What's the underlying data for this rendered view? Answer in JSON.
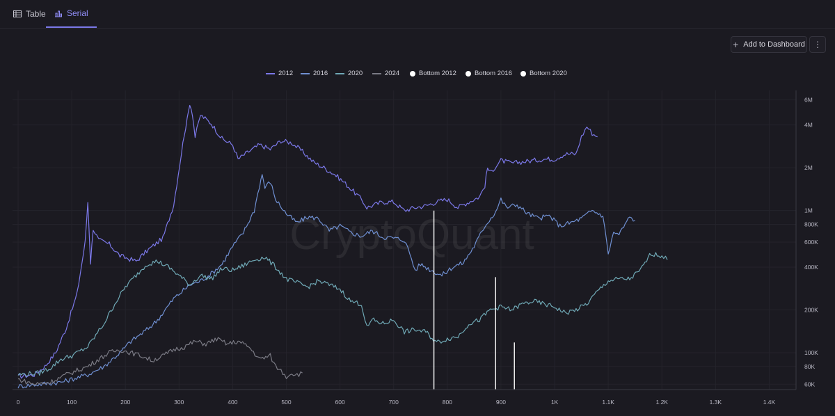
{
  "tabs": [
    {
      "label": "Table",
      "icon": "table-icon"
    },
    {
      "label": "Serial",
      "icon": "bar-chart-icon"
    }
  ],
  "toolbar": {
    "add_label": "Add to Dashboard"
  },
  "watermark": "CryptoQuant",
  "chart_data": {
    "type": "line",
    "title": "",
    "xlabel": "",
    "ylabel": "",
    "xlim": [
      0,
      1450
    ],
    "ylim": [
      55000,
      7000000
    ],
    "yscale": "log",
    "legend_position": "top-center",
    "x_ticks": [
      {
        "v": 0,
        "label": "0"
      },
      {
        "v": 100,
        "label": "100"
      },
      {
        "v": 200,
        "label": "200"
      },
      {
        "v": 300,
        "label": "300"
      },
      {
        "v": 400,
        "label": "400"
      },
      {
        "v": 500,
        "label": "500"
      },
      {
        "v": 600,
        "label": "600"
      },
      {
        "v": 700,
        "label": "700"
      },
      {
        "v": 800,
        "label": "800"
      },
      {
        "v": 900,
        "label": "900"
      },
      {
        "v": 1000,
        "label": "1K"
      },
      {
        "v": 1100,
        "label": "1.1K"
      },
      {
        "v": 1200,
        "label": "1.2K"
      },
      {
        "v": 1300,
        "label": "1.3K"
      },
      {
        "v": 1400,
        "label": "1.4K"
      }
    ],
    "y_ticks": [
      {
        "v": 60000,
        "label": "60K"
      },
      {
        "v": 80000,
        "label": "80K"
      },
      {
        "v": 100000,
        "label": "100K"
      },
      {
        "v": 200000,
        "label": "200K"
      },
      {
        "v": 400000,
        "label": "400K"
      },
      {
        "v": 600000,
        "label": "600K"
      },
      {
        "v": 800000,
        "label": "800K"
      },
      {
        "v": 1000000,
        "label": "1M"
      },
      {
        "v": 2000000,
        "label": "2M"
      },
      {
        "v": 4000000,
        "label": "4M"
      },
      {
        "v": 6000000,
        "label": "6M"
      }
    ],
    "series": [
      {
        "name": "2012",
        "color": "#7b78e8",
        "points": [
          [
            0,
            68000
          ],
          [
            30,
            70000
          ],
          [
            50,
            80000
          ],
          [
            70,
            100000
          ],
          [
            90,
            150000
          ],
          [
            110,
            260000
          ],
          [
            125,
            600000
          ],
          [
            130,
            1150000
          ],
          [
            135,
            430000
          ],
          [
            140,
            750000
          ],
          [
            150,
            620000
          ],
          [
            170,
            580000
          ],
          [
            190,
            480000
          ],
          [
            220,
            440000
          ],
          [
            240,
            520000
          ],
          [
            270,
            640000
          ],
          [
            290,
            1100000
          ],
          [
            310,
            3500000
          ],
          [
            315,
            4300000
          ],
          [
            320,
            5700000
          ],
          [
            325,
            4800000
          ],
          [
            330,
            3300000
          ],
          [
            340,
            4700000
          ],
          [
            360,
            4100000
          ],
          [
            380,
            3200000
          ],
          [
            400,
            2900000
          ],
          [
            410,
            2300000
          ],
          [
            430,
            2600000
          ],
          [
            450,
            2900000
          ],
          [
            470,
            2700000
          ],
          [
            490,
            3100000
          ],
          [
            510,
            3000000
          ],
          [
            530,
            2600000
          ],
          [
            550,
            2200000
          ],
          [
            570,
            2000000
          ],
          [
            590,
            1800000
          ],
          [
            610,
            1550000
          ],
          [
            640,
            1200000
          ],
          [
            650,
            1050000
          ],
          [
            680,
            1150000
          ],
          [
            700,
            1150000
          ],
          [
            720,
            1000000
          ],
          [
            740,
            1050000
          ],
          [
            760,
            1080000
          ],
          [
            780,
            1150000
          ],
          [
            800,
            1200000
          ],
          [
            820,
            1050000
          ],
          [
            840,
            1150000
          ],
          [
            860,
            1250000
          ],
          [
            870,
            1500000
          ],
          [
            875,
            2000000
          ],
          [
            880,
            1850000
          ],
          [
            900,
            2250000
          ],
          [
            920,
            2150000
          ],
          [
            940,
            2200000
          ],
          [
            960,
            2250000
          ],
          [
            980,
            2300000
          ],
          [
            1000,
            2300000
          ],
          [
            1020,
            2500000
          ],
          [
            1040,
            2500000
          ],
          [
            1050,
            3300000
          ],
          [
            1060,
            3900000
          ],
          [
            1070,
            3500000
          ],
          [
            1080,
            3300000
          ]
        ]
      },
      {
        "name": "2016",
        "color": "#6f8fd1",
        "points": [
          [
            0,
            58000
          ],
          [
            40,
            60000
          ],
          [
            80,
            62000
          ],
          [
            100,
            65000
          ],
          [
            130,
            70000
          ],
          [
            160,
            80000
          ],
          [
            190,
            100000
          ],
          [
            210,
            120000
          ],
          [
            240,
            145000
          ],
          [
            260,
            170000
          ],
          [
            290,
            240000
          ],
          [
            320,
            300000
          ],
          [
            340,
            320000
          ],
          [
            360,
            360000
          ],
          [
            380,
            420000
          ],
          [
            400,
            560000
          ],
          [
            420,
            700000
          ],
          [
            440,
            1000000
          ],
          [
            450,
            1500000
          ],
          [
            455,
            1800000
          ],
          [
            460,
            1450000
          ],
          [
            470,
            1600000
          ],
          [
            480,
            1200000
          ],
          [
            500,
            950000
          ],
          [
            520,
            820000
          ],
          [
            540,
            900000
          ],
          [
            560,
            880000
          ],
          [
            580,
            720000
          ],
          [
            600,
            780000
          ],
          [
            620,
            700000
          ],
          [
            640,
            660000
          ],
          [
            660,
            720000
          ],
          [
            680,
            650000
          ],
          [
            700,
            640000
          ],
          [
            720,
            620000
          ],
          [
            730,
            500000
          ],
          [
            740,
            380000
          ],
          [
            750,
            420000
          ],
          [
            770,
            380000
          ],
          [
            790,
            350000
          ],
          [
            810,
            400000
          ],
          [
            830,
            430000
          ],
          [
            850,
            560000
          ],
          [
            870,
            780000
          ],
          [
            890,
            980000
          ],
          [
            900,
            1200000
          ],
          [
            910,
            1050000
          ],
          [
            930,
            1100000
          ],
          [
            950,
            950000
          ],
          [
            970,
            880000
          ],
          [
            990,
            920000
          ],
          [
            1010,
            780000
          ],
          [
            1030,
            820000
          ],
          [
            1050,
            880000
          ],
          [
            1070,
            1000000
          ],
          [
            1090,
            920000
          ],
          [
            1100,
            500000
          ],
          [
            1110,
            700000
          ],
          [
            1120,
            680000
          ],
          [
            1140,
            900000
          ],
          [
            1150,
            850000
          ]
        ]
      },
      {
        "name": "2020",
        "color": "#6fa8b5",
        "points": [
          [
            0,
            70000
          ],
          [
            40,
            72000
          ],
          [
            60,
            78000
          ],
          [
            80,
            90000
          ],
          [
            100,
            95000
          ],
          [
            130,
            110000
          ],
          [
            160,
            160000
          ],
          [
            180,
            220000
          ],
          [
            200,
            290000
          ],
          [
            220,
            350000
          ],
          [
            240,
            420000
          ],
          [
            260,
            440000
          ],
          [
            280,
            400000
          ],
          [
            300,
            350000
          ],
          [
            320,
            300000
          ],
          [
            340,
            350000
          ],
          [
            360,
            330000
          ],
          [
            380,
            390000
          ],
          [
            400,
            380000
          ],
          [
            420,
            410000
          ],
          [
            440,
            450000
          ],
          [
            460,
            470000
          ],
          [
            480,
            400000
          ],
          [
            500,
            330000
          ],
          [
            520,
            310000
          ],
          [
            540,
            290000
          ],
          [
            560,
            320000
          ],
          [
            580,
            300000
          ],
          [
            600,
            280000
          ],
          [
            620,
            230000
          ],
          [
            640,
            220000
          ],
          [
            650,
            150000
          ],
          [
            660,
            170000
          ],
          [
            680,
            160000
          ],
          [
            700,
            170000
          ],
          [
            720,
            140000
          ],
          [
            740,
            145000
          ],
          [
            760,
            140000
          ],
          [
            780,
            118000
          ],
          [
            800,
            125000
          ],
          [
            820,
            130000
          ],
          [
            840,
            160000
          ],
          [
            860,
            170000
          ],
          [
            880,
            200000
          ],
          [
            900,
            210000
          ],
          [
            920,
            200000
          ],
          [
            940,
            220000
          ],
          [
            960,
            230000
          ],
          [
            980,
            220000
          ],
          [
            1000,
            210000
          ],
          [
            1020,
            190000
          ],
          [
            1040,
            200000
          ],
          [
            1060,
            220000
          ],
          [
            1080,
            270000
          ],
          [
            1100,
            320000
          ],
          [
            1120,
            330000
          ],
          [
            1140,
            330000
          ],
          [
            1160,
            380000
          ],
          [
            1180,
            500000
          ],
          [
            1200,
            480000
          ],
          [
            1210,
            450000
          ]
        ]
      },
      {
        "name": "2024",
        "color": "#7a7a84",
        "points": [
          [
            0,
            65000
          ],
          [
            30,
            60000
          ],
          [
            60,
            62000
          ],
          [
            90,
            70000
          ],
          [
            110,
            75000
          ],
          [
            130,
            80000
          ],
          [
            150,
            90000
          ],
          [
            170,
            100000
          ],
          [
            190,
            105000
          ],
          [
            210,
            100000
          ],
          [
            230,
            95000
          ],
          [
            250,
            88000
          ],
          [
            270,
            95000
          ],
          [
            290,
            105000
          ],
          [
            310,
            110000
          ],
          [
            330,
            120000
          ],
          [
            350,
            115000
          ],
          [
            370,
            125000
          ],
          [
            390,
            115000
          ],
          [
            410,
            120000
          ],
          [
            430,
            110000
          ],
          [
            450,
            90000
          ],
          [
            470,
            95000
          ],
          [
            480,
            80000
          ],
          [
            490,
            75000
          ],
          [
            500,
            68000
          ],
          [
            510,
            72000
          ],
          [
            520,
            70000
          ],
          [
            530,
            72000
          ]
        ]
      },
      {
        "name": "Bottom 2012",
        "color": "#ffffff",
        "points": [
          [
            775,
            1000000
          ],
          [
            775,
            55000
          ]
        ]
      },
      {
        "name": "Bottom 2016",
        "color": "#ffffff",
        "points": [
          [
            890,
            340000
          ],
          [
            890,
            55000
          ]
        ]
      },
      {
        "name": "Bottom 2020",
        "color": "#ffffff",
        "points": [
          [
            925,
            118000
          ],
          [
            925,
            55000
          ]
        ]
      }
    ]
  }
}
